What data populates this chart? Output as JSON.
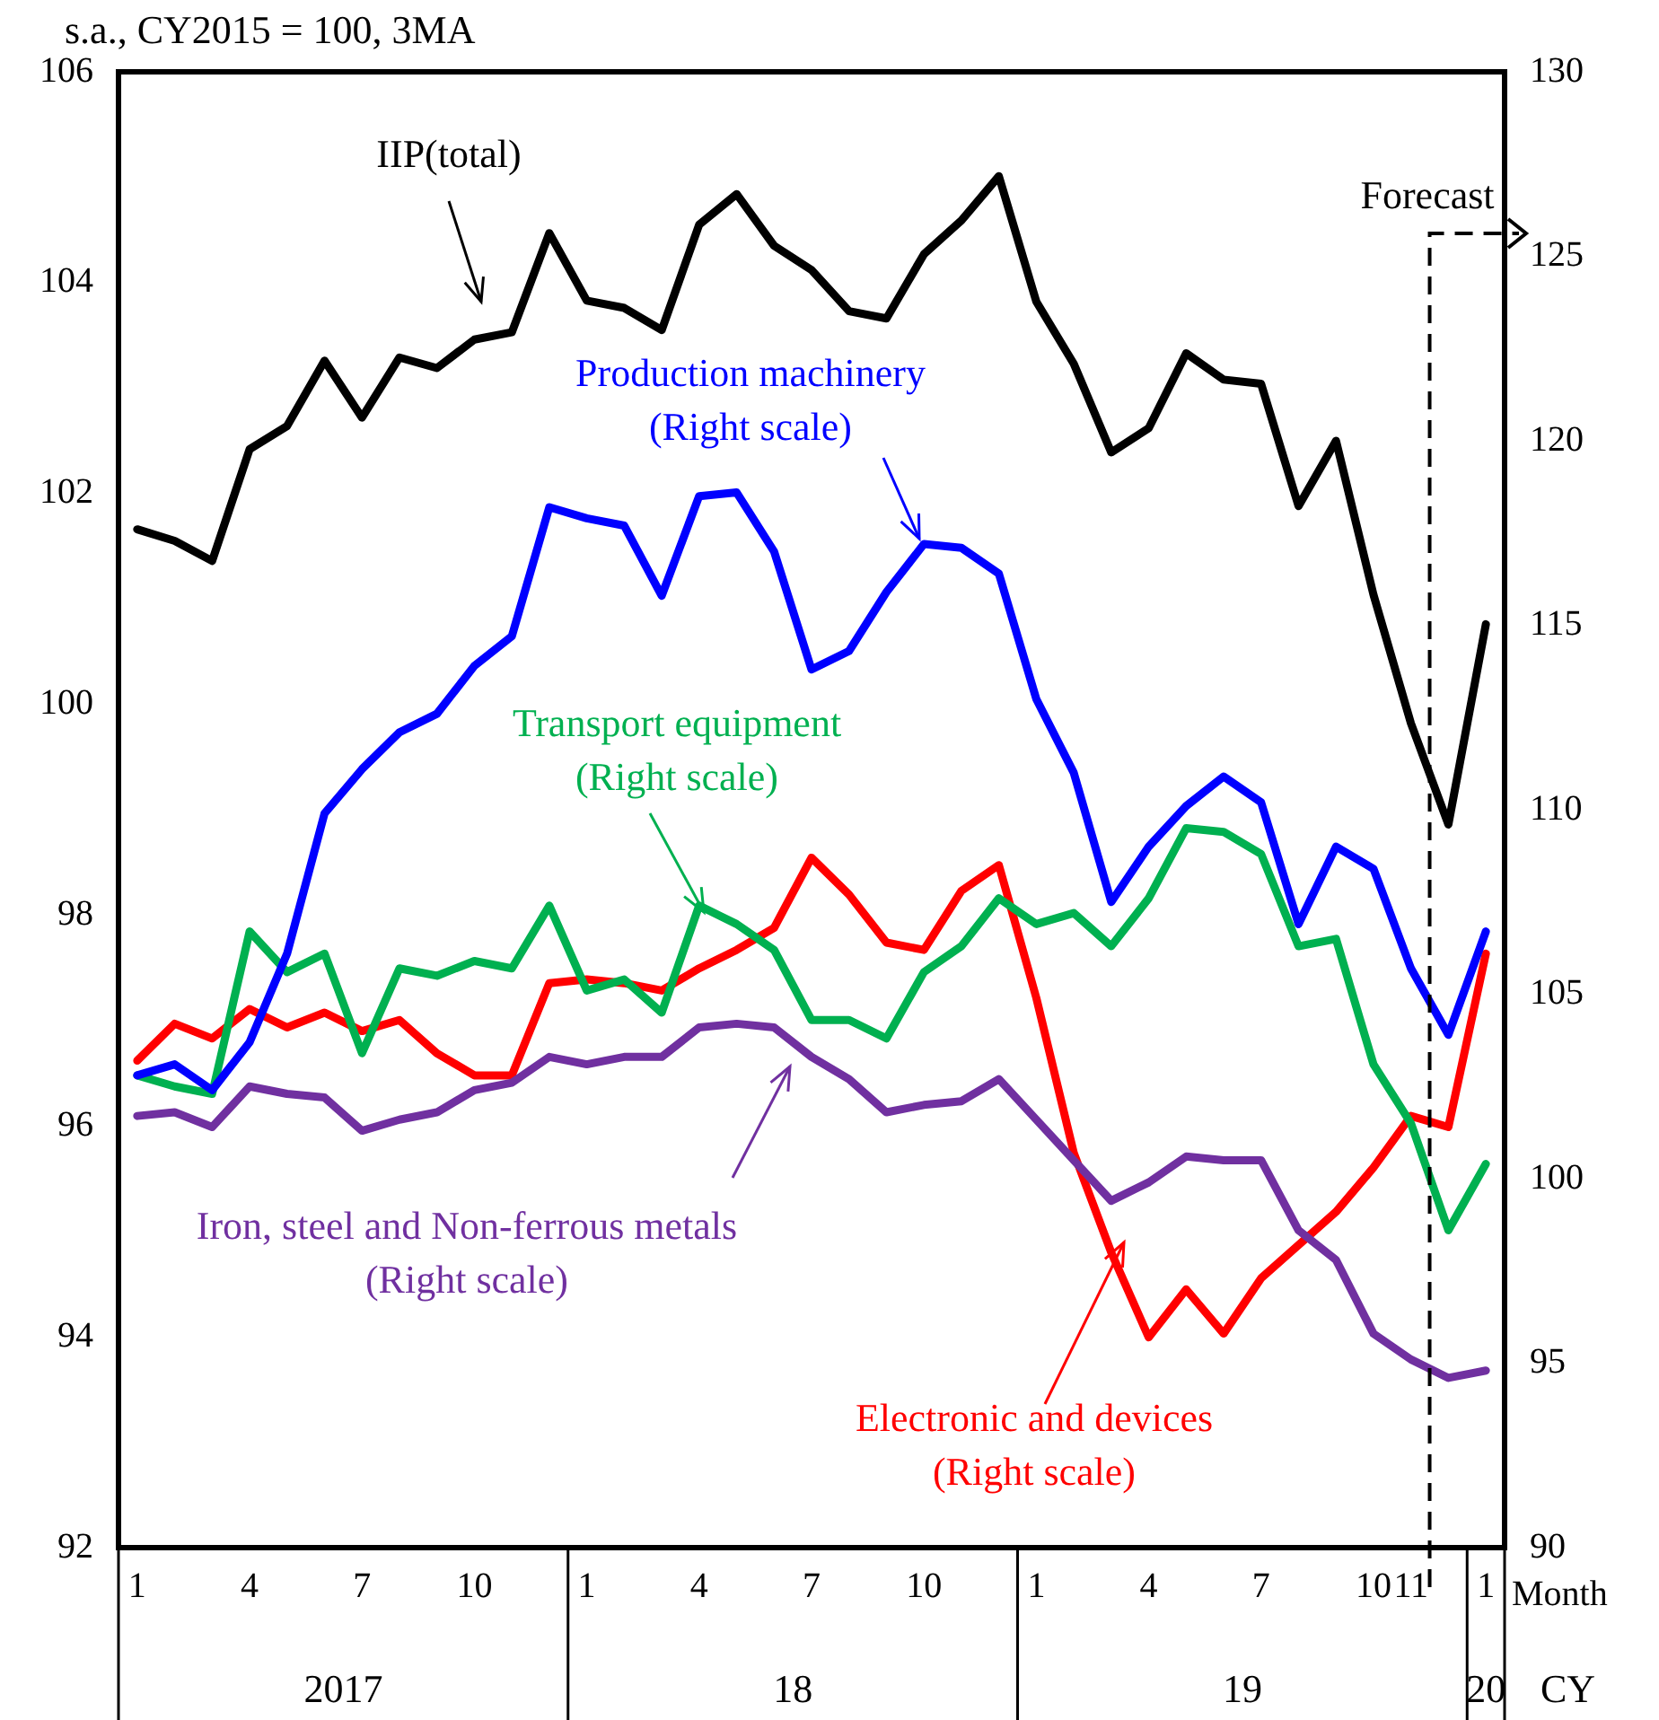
{
  "chart_data": {
    "type": "line",
    "title": "s.a., CY2015 = 100, 3MA",
    "xlabel": "Month",
    "legend": false,
    "grid": false,
    "marker": "none",
    "line_style": "solid",
    "categories": [
      "1",
      null,
      null,
      "4",
      null,
      null,
      "7",
      null,
      null,
      "10",
      null,
      null,
      "1",
      null,
      null,
      "4",
      null,
      null,
      "7",
      null,
      null,
      "10",
      null,
      null,
      "1",
      null,
      null,
      "4",
      null,
      null,
      "7",
      null,
      null,
      "10",
      "11",
      null,
      "1"
    ],
    "ylim": [
      92,
      106
    ],
    "yticks": [
      92,
      94,
      96,
      98,
      100,
      102,
      104,
      106
    ],
    "y2lim": [
      90,
      130
    ],
    "y2ticks": [
      90,
      95,
      100,
      105,
      110,
      115,
      120,
      125,
      130
    ],
    "series": [
      {
        "name": "IIP(total)",
        "color": "#000000",
        "values": [
          101.66,
          101.55,
          101.36,
          102.42,
          102.64,
          103.26,
          102.72,
          103.29,
          103.19,
          103.46,
          103.53,
          104.47,
          103.83,
          103.76,
          103.55,
          104.55,
          104.84,
          104.35,
          104.12,
          103.73,
          103.66,
          104.27,
          104.59,
          105.01,
          103.82,
          103.23,
          102.39,
          102.62,
          103.33,
          103.08,
          103.04,
          101.88,
          102.5,
          101.04,
          99.82,
          98.86,
          100.76
        ]
      },
      {
        "name": "Production machinery\n(Right scale)",
        "axis": "y2",
        "color": "#0000ff",
        "values": [
          102.8,
          103.1,
          102.4,
          103.7,
          106.1,
          109.9,
          111.1,
          112.1,
          112.6,
          113.9,
          114.7,
          118.2,
          117.9,
          117.7,
          115.8,
          118.5,
          118.6,
          117.0,
          113.8,
          114.3,
          115.9,
          117.2,
          117.1,
          116.4,
          113.0,
          111.0,
          107.5,
          109.0,
          110.1,
          110.9,
          110.2,
          106.9,
          109.0,
          108.4,
          105.7,
          103.9,
          106.7
        ]
      },
      {
        "name": "Transport equipment\n(Right scale)",
        "axis": "y2",
        "color": "#00b050",
        "values": [
          102.8,
          102.5,
          102.3,
          106.7,
          105.6,
          106.1,
          103.4,
          105.7,
          105.5,
          105.9,
          105.7,
          107.4,
          105.1,
          105.4,
          104.5,
          107.4,
          106.9,
          106.2,
          104.3,
          104.3,
          103.8,
          105.6,
          106.3,
          107.6,
          106.9,
          107.2,
          106.3,
          107.6,
          109.5,
          109.4,
          108.8,
          106.3,
          106.5,
          103.1,
          101.5,
          98.6,
          100.4
        ]
      },
      {
        "name": "Iron, steel and Non-ferrous metals\n(Right scale)",
        "axis": "y2",
        "color": "#7030a0",
        "values": [
          101.7,
          101.8,
          101.4,
          102.5,
          102.3,
          102.2,
          101.3,
          101.6,
          101.8,
          102.4,
          102.6,
          103.3,
          103.1,
          103.3,
          103.3,
          104.1,
          104.2,
          104.1,
          103.3,
          102.7,
          101.8,
          102.0,
          102.1,
          102.7,
          101.6,
          100.5,
          99.4,
          99.9,
          100.6,
          100.5,
          100.5,
          98.6,
          97.8,
          95.8,
          95.1,
          94.6,
          94.8
        ]
      },
      {
        "name": "Electronic and devices\n(Right scale)",
        "axis": "y2",
        "color": "#ff0000",
        "values": [
          103.2,
          104.2,
          103.8,
          104.6,
          104.1,
          104.5,
          104.0,
          104.3,
          103.4,
          102.8,
          102.8,
          105.3,
          105.4,
          105.3,
          105.1,
          105.7,
          106.2,
          106.8,
          108.7,
          107.7,
          106.4,
          106.2,
          107.8,
          108.5,
          104.9,
          100.7,
          98.0,
          95.7,
          97.0,
          95.8,
          97.3,
          98.2,
          99.1,
          100.3,
          101.7,
          101.4,
          106.1
        ]
      }
    ],
    "annotations": [
      "2017",
      "18",
      "19",
      "20",
      "CY",
      "Forecast"
    ]
  }
}
